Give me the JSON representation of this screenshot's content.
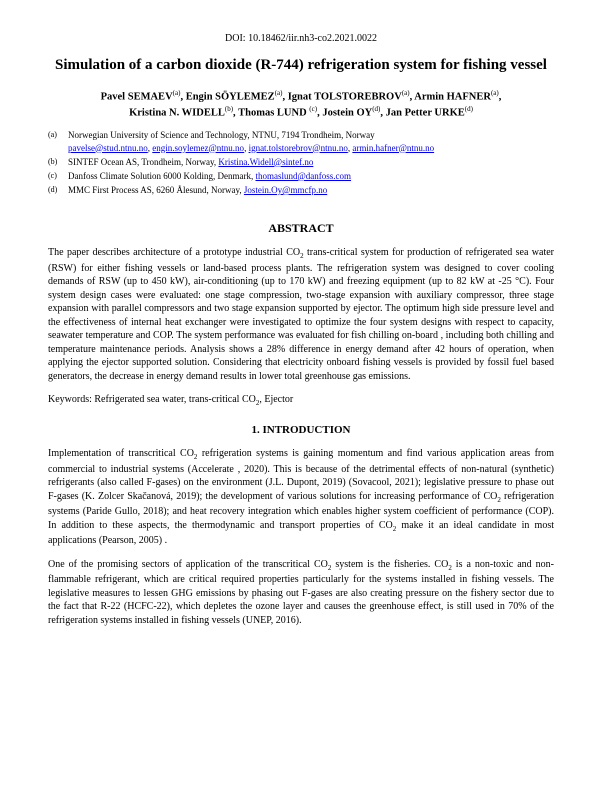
{
  "doi": "DOI: 10.18462/iir.nh3-co2.2021.0022",
  "title": "Simulation of a carbon dioxide (R-744) refrigeration system for fishing vessel",
  "authors_line1": "Pavel SEMAEV",
  "authors_line1b": ", Engin SÖYLEMEZ",
  "authors_line1c": ", Ignat TOLSTOREBROV",
  "authors_line1d": ", Armin HAFNER",
  "authors_line2a": "Kristina N. WIDELL",
  "authors_line2b": ", Thomas LUND ",
  "authors_line2c": ", Jostein OY",
  "authors_line2d": ", Jan Petter URKE",
  "sup_a": "(a)",
  "sup_b": "(b)",
  "sup_c": "(c)",
  "sup_d": "(d)",
  "aff_a_label": "(a)",
  "aff_a_text": "Norwegian University of Science and Technology, NTNU, 7194 Trondheim, Norway",
  "aff_a_link1": "pavelse@stud.ntnu.no",
  "aff_a_sep1": ", ",
  "aff_a_link2": "engin.soylemez@ntnu.no",
  "aff_a_sep2": ", ",
  "aff_a_link3": "ignat.tolstorebrov@ntnu.no",
  "aff_a_sep3": ", ",
  "aff_a_link4": "armin.hafner@ntnu.no",
  "aff_b_label": "(b)",
  "aff_b_text": "SINTEF Ocean AS, Trondheim, Norway, ",
  "aff_b_link": "Kristina.Widell@sintef.no",
  "aff_c_label": "(c)",
  "aff_c_text": "Danfoss Climate Solution 6000 Kolding, Denmark, ",
  "aff_c_link": "thomaslund@danfoss.com",
  "aff_d_label": "(d)",
  "aff_d_text": "MMC First Process AS, 6260 Ålesund, Norway, ",
  "aff_d_link": "Jostein.Oy@mmcfp.no",
  "abstract_head": "ABSTRACT",
  "abstract_p1a": "The paper describes architecture of a prototype industrial CO",
  "abstract_p1b": " trans-critical system for production of refrigerated sea water (RSW) for either fishing vessels or land-based process plants. The refrigeration system was designed to cover cooling demands of RSW (up to 450 kW), air-conditioning (up to 170 kW) and freezing equipment (up to 82 kW at -25 °C). Four system design cases were evaluated: one stage compression, two-stage expansion with auxiliary compressor, three stage expansion with parallel compressors and two stage expansion supported by ejector. The optimum high side pressure level and the effectiveness of internal heat exchanger were investigated to optimize the four system designs with respect to capacity, seawater temperature and COP. The system performance was evaluated for fish chilling on-board , including both chilling and temperature maintenance periods. Analysis shows a 28% difference in energy demand after 42 hours of operation, when applying the ejector supported solution. Considering that electricity onboard fishing vessels is provided by fossil fuel based generators, the decrease in energy demand results in lower total greenhouse gas emissions.",
  "keywords_pre": "Keywords: Refrigerated sea water, trans-critical CO",
  "keywords_post": ", Ejector",
  "section1_head": "1.   INTRODUCTION",
  "intro_p1a": "Implementation of transcritical CO",
  "intro_p1b": " refrigeration systems is gaining momentum and find various application areas from commercial to industrial systems (Accelerate , 2020). This is because of the detrimental effects of non-natural (synthetic) refrigerants (also called F-gases) on the environment (J.L. Dupont, 2019) (Sovacool, 2021); legislative pressure to phase out F-gases (K. Zolcer Skačanová, 2019); the development of various solutions for increasing performance of CO",
  "intro_p1c": " refrigeration systems (Paride Gullo, 2018); and heat recovery integration which enables higher system coefficient of performance (COP). In addition to these aspects, the thermodynamic and transport properties of CO",
  "intro_p1d": " make it an ideal candidate in most applications  (Pearson, 2005) .",
  "intro_p2a": "One of the promising sectors of application of the transcritical CO",
  "intro_p2b": " system is the fisheries. CO",
  "intro_p2c": " is a non-toxic and non-flammable refrigerant, which are critical required properties particularly for the systems installed in fishing vessels. The legislative measures to lessen GHG emissions by phasing out F-gases are also creating pressure on the fishery sector due to the fact that R-22 (HCFC-22), which depletes the ozone layer and causes the greenhouse effect, is still used in 70% of the refrigeration systems installed in fishing vessels (UNEP, 2016).",
  "sub2": "2"
}
